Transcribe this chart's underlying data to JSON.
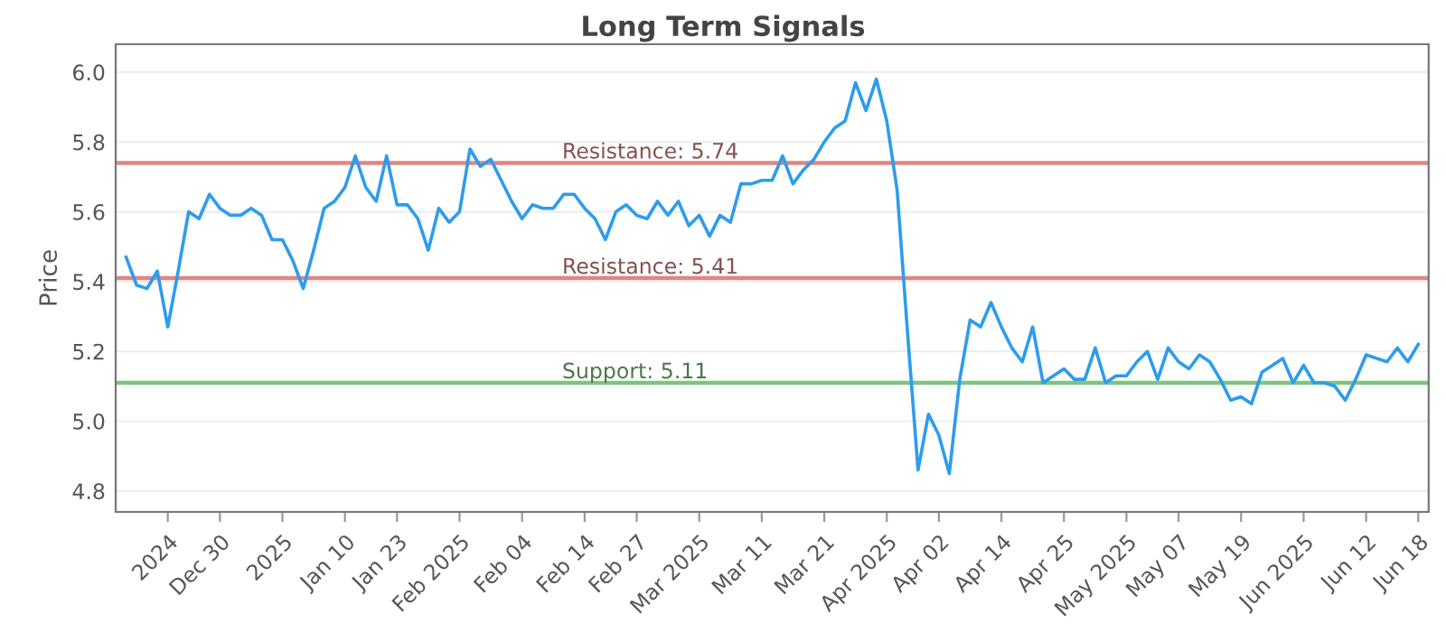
{
  "chart_data": {
    "type": "line",
    "title": "Long Term Signals",
    "ylabel": "Price",
    "categories": [
      null,
      null,
      null,
      null,
      "2024",
      null,
      null,
      null,
      null,
      "Dec 30",
      null,
      null,
      null,
      null,
      null,
      "2025",
      null,
      null,
      null,
      null,
      null,
      "Jan 10",
      null,
      null,
      null,
      null,
      "Jan 23",
      null,
      null,
      null,
      null,
      null,
      "Feb 2025",
      null,
      null,
      null,
      null,
      null,
      "Feb 04",
      null,
      null,
      null,
      null,
      null,
      "Feb 14",
      null,
      null,
      null,
      null,
      "Feb 27",
      null,
      null,
      null,
      null,
      null,
      "Mar 2025",
      null,
      null,
      null,
      null,
      null,
      "Mar 11",
      null,
      null,
      null,
      null,
      null,
      "Mar 21",
      null,
      null,
      null,
      null,
      null,
      "Apr 2025",
      null,
      null,
      null,
      null,
      "Apr 02",
      null,
      null,
      null,
      null,
      null,
      "Apr 14",
      null,
      null,
      null,
      null,
      null,
      "Apr 25",
      null,
      null,
      null,
      null,
      null,
      "May 2025",
      null,
      null,
      null,
      null,
      "May 07",
      null,
      null,
      null,
      null,
      null,
      "May 19",
      null,
      null,
      null,
      null,
      null,
      "Jun 2025",
      null,
      null,
      null,
      null,
      null,
      "Jun 12",
      null,
      null,
      null,
      null,
      "Jun 18"
    ],
    "series": [
      {
        "color": "#2e9cec",
        "values": [
          5.47,
          5.39,
          5.38,
          5.43,
          5.27,
          5.43,
          5.6,
          5.58,
          5.65,
          5.61,
          5.59,
          5.59,
          5.61,
          5.59,
          5.52,
          5.52,
          5.46,
          5.38,
          5.49,
          5.61,
          5.63,
          5.67,
          5.76,
          5.67,
          5.63,
          5.76,
          5.62,
          5.62,
          5.58,
          5.49,
          5.61,
          5.57,
          5.6,
          5.78,
          5.73,
          5.75,
          5.69,
          5.63,
          5.58,
          5.62,
          5.61,
          5.61,
          5.65,
          5.65,
          5.61,
          5.58,
          5.52,
          5.6,
          5.62,
          5.59,
          5.58,
          5.63,
          5.59,
          5.63,
          5.56,
          5.59,
          5.53,
          5.59,
          5.57,
          5.68,
          5.68,
          5.69,
          5.69,
          5.76,
          5.68,
          5.72,
          5.75,
          5.8,
          5.84,
          5.86,
          5.97,
          5.89,
          5.98,
          5.86,
          5.66,
          5.25,
          4.86,
          5.02,
          4.96,
          4.85,
          5.12,
          5.29,
          5.27,
          5.34,
          5.27,
          5.21,
          5.17,
          5.27,
          5.11,
          5.13,
          5.15,
          5.12,
          5.12,
          5.21,
          5.11,
          5.13,
          5.13,
          5.17,
          5.2,
          5.12,
          5.21,
          5.17,
          5.15,
          5.19,
          5.17,
          5.12,
          5.06,
          5.07,
          5.05,
          5.14,
          5.16,
          5.18,
          5.11,
          5.16,
          5.11,
          5.11,
          5.1,
          5.06,
          5.12,
          5.19,
          5.18,
          5.17,
          5.21,
          5.17,
          5.22
        ]
      }
    ],
    "ylim": [
      4.74,
      6.08
    ],
    "yticks": [
      4.8,
      {
        "value": 5,
        "label": "5.0"
      },
      5.2,
      5.4,
      5.6,
      5.8,
      {
        "value": 6,
        "label": "6.0"
      }
    ],
    "grid": "y",
    "legend": false,
    "marker": "none",
    "line_style": "solid",
    "ref_lines": [
      {
        "axis": "y",
        "value": 5.74,
        "label": "Resistance: 5.74",
        "color": "#e08585"
      },
      {
        "axis": "y",
        "value": 5.41,
        "label": "Resistance: 5.41",
        "color": "#e08585"
      },
      {
        "axis": "y",
        "value": 5.11,
        "label": "Support: 5.11",
        "color": "#7cc67c"
      }
    ]
  }
}
